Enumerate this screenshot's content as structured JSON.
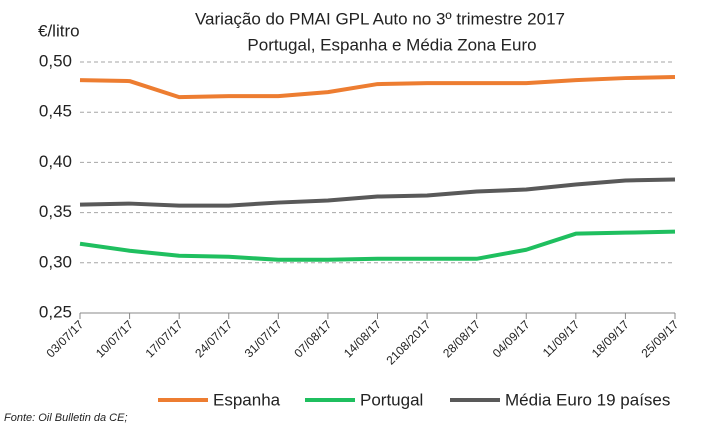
{
  "chart_data": {
    "type": "line",
    "title": "Variação do PMAI GPL Auto no 3º trimestre 2017",
    "subtitle": "Portugal, Espanha e Média Zona Euro",
    "y_label": "€/litro",
    "source": "Fonte: Oil Bulletin da CE;",
    "categories": [
      "03/07/17",
      "10/07/17",
      "17/07/17",
      "24/07/17",
      "31/07/17",
      "07/08/17",
      "14/08/17",
      "2108/2017",
      "28/08/17",
      "04/09/17",
      "11/09/17",
      "18/09/17",
      "25/09/17"
    ],
    "series": [
      {
        "name": "Espanha",
        "color": "#ed7d31",
        "values": [
          0.482,
          0.481,
          0.465,
          0.466,
          0.466,
          0.47,
          0.478,
          0.479,
          0.479,
          0.479,
          0.482,
          0.484,
          0.485
        ]
      },
      {
        "name": "Portugal",
        "color": "#1fbf5f",
        "values": [
          0.319,
          0.312,
          0.307,
          0.306,
          0.303,
          0.303,
          0.304,
          0.304,
          0.304,
          0.313,
          0.329,
          0.33,
          0.331
        ]
      },
      {
        "name": "Média Euro 19 países",
        "color": "#595959",
        "values": [
          0.358,
          0.359,
          0.357,
          0.357,
          0.36,
          0.362,
          0.366,
          0.367,
          0.371,
          0.373,
          0.378,
          0.382,
          0.383
        ]
      }
    ],
    "ylim": [
      0.25,
      0.5
    ],
    "yticks": [
      {
        "value": 0.25,
        "label": "0,25"
      },
      {
        "value": 0.3,
        "label": "0,30"
      },
      {
        "value": 0.35,
        "label": "0,35"
      },
      {
        "value": 0.4,
        "label": "0,40"
      },
      {
        "value": 0.45,
        "label": "0,45"
      },
      {
        "value": 0.5,
        "label": "0,50"
      }
    ],
    "grid": true
  }
}
